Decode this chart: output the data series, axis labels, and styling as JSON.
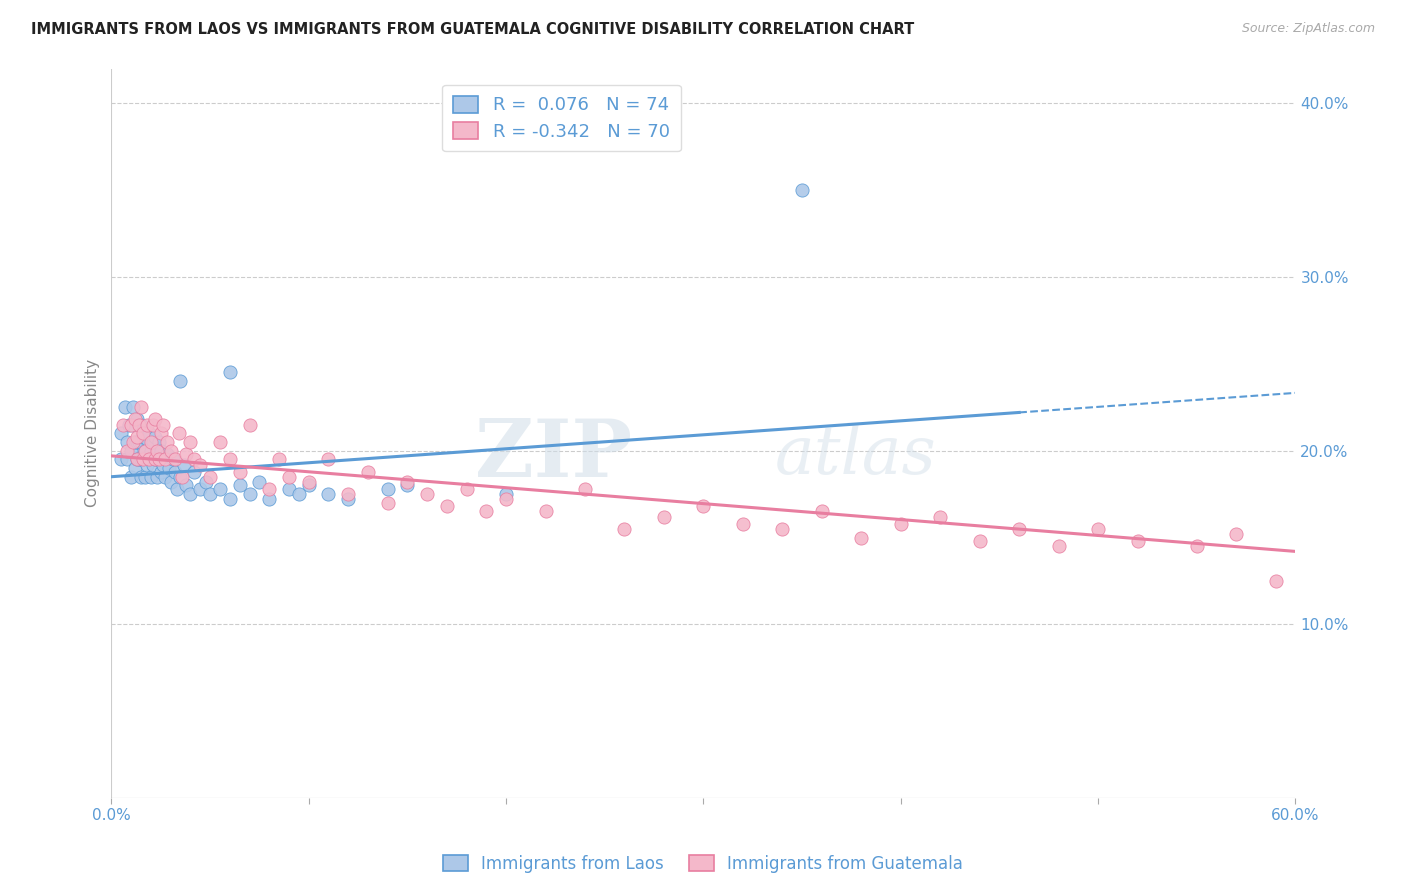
{
  "title": "IMMIGRANTS FROM LAOS VS IMMIGRANTS FROM GUATEMALA COGNITIVE DISABILITY CORRELATION CHART",
  "source": "Source: ZipAtlas.com",
  "ylabel": "Cognitive Disability",
  "x_min": 0.0,
  "x_max": 0.6,
  "y_min": 0.0,
  "y_max": 0.42,
  "x_ticks": [
    0.0,
    0.1,
    0.2,
    0.3,
    0.4,
    0.5,
    0.6
  ],
  "x_tick_labels_show": [
    "0.0%",
    "",
    "",
    "",
    "",
    "",
    "60.0%"
  ],
  "y_ticks": [
    0.1,
    0.2,
    0.3,
    0.4
  ],
  "y_tick_labels": [
    "10.0%",
    "20.0%",
    "30.0%",
    "40.0%"
  ],
  "laos_color": "#adc8e8",
  "laos_color_dark": "#5b9bd5",
  "guatemala_color": "#f4b8ca",
  "guatemala_color_dark": "#e87ea0",
  "laos_R": 0.076,
  "laos_N": 74,
  "guatemala_R": -0.342,
  "guatemala_N": 70,
  "legend_label_laos": "Immigrants from Laos",
  "legend_label_guatemala": "Immigrants from Guatemala",
  "watermark_zip": "ZIP",
  "watermark_atlas": "atlas",
  "background_color": "#ffffff",
  "grid_color": "#cccccc",
  "title_color": "#222222",
  "axis_label_color": "#5b9bd5",
  "laos_trend_start_y": 0.185,
  "laos_trend_end_y": 0.222,
  "laos_trend_dashed_end_y": 0.228,
  "guatemala_trend_start_y": 0.197,
  "guatemala_trend_end_y": 0.142,
  "laos_scatter_x": [
    0.005,
    0.005,
    0.007,
    0.008,
    0.008,
    0.009,
    0.01,
    0.01,
    0.011,
    0.011,
    0.012,
    0.012,
    0.013,
    0.013,
    0.013,
    0.014,
    0.014,
    0.014,
    0.015,
    0.015,
    0.015,
    0.015,
    0.016,
    0.016,
    0.017,
    0.017,
    0.018,
    0.018,
    0.019,
    0.019,
    0.02,
    0.02,
    0.021,
    0.021,
    0.022,
    0.022,
    0.023,
    0.023,
    0.024,
    0.025,
    0.025,
    0.026,
    0.027,
    0.028,
    0.029,
    0.03,
    0.031,
    0.032,
    0.033,
    0.035,
    0.037,
    0.038,
    0.04,
    0.042,
    0.045,
    0.048,
    0.05,
    0.055,
    0.06,
    0.065,
    0.07,
    0.075,
    0.08,
    0.09,
    0.095,
    0.1,
    0.11,
    0.12,
    0.14,
    0.15,
    0.035,
    0.06,
    0.35,
    0.2
  ],
  "laos_scatter_y": [
    0.195,
    0.21,
    0.225,
    0.195,
    0.205,
    0.215,
    0.185,
    0.2,
    0.215,
    0.225,
    0.19,
    0.205,
    0.195,
    0.205,
    0.218,
    0.195,
    0.205,
    0.215,
    0.185,
    0.195,
    0.205,
    0.215,
    0.195,
    0.208,
    0.185,
    0.2,
    0.192,
    0.207,
    0.195,
    0.21,
    0.185,
    0.2,
    0.192,
    0.205,
    0.195,
    0.208,
    0.185,
    0.195,
    0.205,
    0.188,
    0.2,
    0.192,
    0.185,
    0.198,
    0.19,
    0.182,
    0.195,
    0.188,
    0.178,
    0.185,
    0.192,
    0.18,
    0.175,
    0.188,
    0.178,
    0.182,
    0.175,
    0.178,
    0.172,
    0.18,
    0.175,
    0.182,
    0.172,
    0.178,
    0.175,
    0.18,
    0.175,
    0.172,
    0.178,
    0.18,
    0.24,
    0.245,
    0.35,
    0.175
  ],
  "guatemala_scatter_x": [
    0.006,
    0.008,
    0.01,
    0.011,
    0.012,
    0.013,
    0.013,
    0.014,
    0.015,
    0.016,
    0.016,
    0.017,
    0.018,
    0.019,
    0.02,
    0.021,
    0.022,
    0.022,
    0.023,
    0.024,
    0.025,
    0.026,
    0.027,
    0.028,
    0.03,
    0.032,
    0.034,
    0.036,
    0.038,
    0.04,
    0.042,
    0.045,
    0.05,
    0.055,
    0.06,
    0.065,
    0.07,
    0.08,
    0.085,
    0.09,
    0.1,
    0.11,
    0.12,
    0.13,
    0.14,
    0.15,
    0.16,
    0.17,
    0.18,
    0.19,
    0.2,
    0.22,
    0.24,
    0.26,
    0.28,
    0.3,
    0.32,
    0.34,
    0.36,
    0.38,
    0.4,
    0.42,
    0.44,
    0.46,
    0.48,
    0.5,
    0.52,
    0.55,
    0.57,
    0.59
  ],
  "guatemala_scatter_y": [
    0.215,
    0.2,
    0.215,
    0.205,
    0.218,
    0.195,
    0.208,
    0.215,
    0.225,
    0.195,
    0.21,
    0.2,
    0.215,
    0.195,
    0.205,
    0.215,
    0.195,
    0.218,
    0.2,
    0.195,
    0.21,
    0.215,
    0.195,
    0.205,
    0.2,
    0.195,
    0.21,
    0.185,
    0.198,
    0.205,
    0.195,
    0.192,
    0.185,
    0.205,
    0.195,
    0.188,
    0.215,
    0.178,
    0.195,
    0.185,
    0.182,
    0.195,
    0.175,
    0.188,
    0.17,
    0.182,
    0.175,
    0.168,
    0.178,
    0.165,
    0.172,
    0.165,
    0.178,
    0.155,
    0.162,
    0.168,
    0.158,
    0.155,
    0.165,
    0.15,
    0.158,
    0.162,
    0.148,
    0.155,
    0.145,
    0.155,
    0.148,
    0.145,
    0.152,
    0.125
  ]
}
